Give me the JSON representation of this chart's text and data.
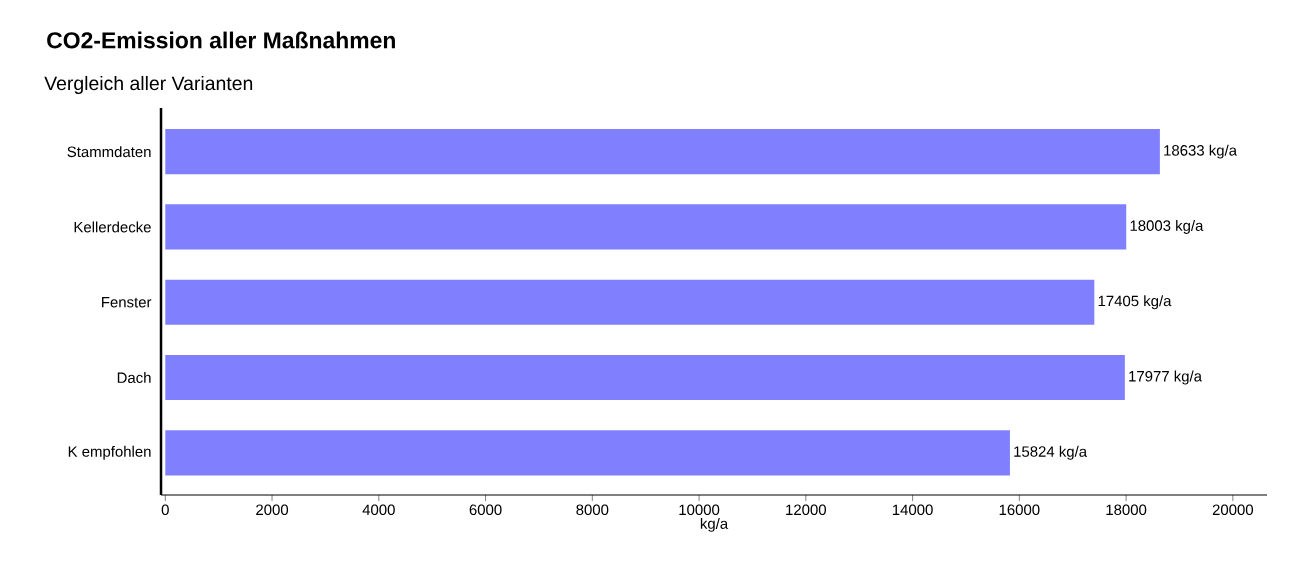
{
  "chart_data": {
    "type": "bar",
    "orientation": "horizontal",
    "title": "CO2-Emission aller Maßnahmen",
    "subtitle": "Vergleich aller Varianten",
    "xlabel": "kg/a",
    "categories": [
      "Stammdaten",
      "Kellerdecke",
      "Fenster",
      "Dach",
      "K empfohlen"
    ],
    "values": [
      18633,
      18003,
      17405,
      17977,
      15824
    ],
    "value_labels": [
      "18633 kg/a",
      "18003 kg/a",
      "17405 kg/a",
      "17977 kg/a",
      "15824 kg/a"
    ],
    "color": "#8080ff",
    "xlim": [
      -80,
      20640
    ],
    "xticks": [
      0,
      2000,
      4000,
      6000,
      8000,
      10000,
      12000,
      14000,
      16000,
      18000,
      20000
    ]
  }
}
